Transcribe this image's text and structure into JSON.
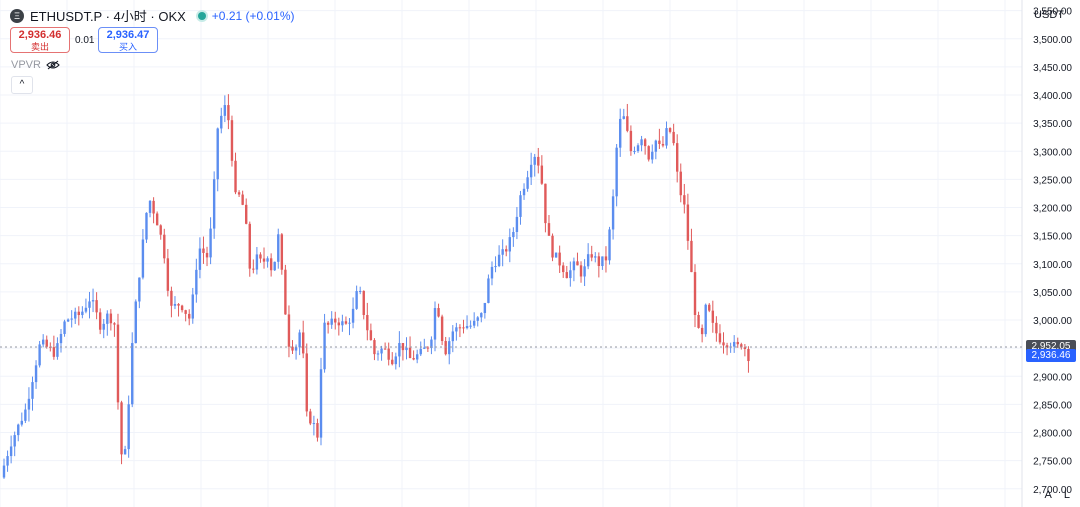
{
  "header": {
    "title": "ETHUSDT.P · 4小时 · OKX",
    "coin_glyph": "Ξ",
    "status_color": "#26a69a",
    "change": "+0.21 (+0.01%)"
  },
  "trade": {
    "sell_price": "2,936.46",
    "sell_label": "卖出",
    "spread": "0.01",
    "buy_price": "2,936.47",
    "buy_label": "买入"
  },
  "indicator": {
    "name": "VPVR",
    "icon": "eye-hidden-icon"
  },
  "collapse_label": "^",
  "currency": "USDT",
  "scale_buttons": {
    "auto": "A",
    "log": "L"
  },
  "colors": {
    "up": "#5b8def",
    "down": "#e05a5a",
    "grid": "#f0f3fa",
    "axis_text": "#131722",
    "tag_dark": "#4a4e57",
    "tag_blue": "#2962ff"
  },
  "chart_data": {
    "type": "candlestick",
    "ylim": [
      2680,
      3560
    ],
    "yticks": [
      "3,550.00",
      "3,500.00",
      "3,450.00",
      "3,400.00",
      "3,350.00",
      "3,300.00",
      "3,250.00",
      "3,200.00",
      "3,150.00",
      "3,100.00",
      "3,050.00",
      "3,000.00",
      "2,950.00",
      "2,900.00",
      "2,850.00",
      "2,800.00",
      "2,750.00",
      "2,700.00"
    ],
    "ytick_values": [
      3550,
      3500,
      3450,
      3400,
      3350,
      3300,
      3250,
      3200,
      3150,
      3100,
      3050,
      3000,
      2950,
      2900,
      2850,
      2800,
      2750,
      2700
    ],
    "price_tags": [
      {
        "label": "2,952.05",
        "value": 2952.05,
        "style": "dark"
      },
      {
        "label": "2,936.46",
        "value": 2936.46,
        "style": "blue"
      }
    ],
    "path": [
      [
        0,
        2720
      ],
      [
        10,
        2780
      ],
      [
        25,
        2840
      ],
      [
        40,
        2960
      ],
      [
        55,
        2940
      ],
      [
        65,
        3000
      ],
      [
        80,
        3010
      ],
      [
        90,
        3040
      ],
      [
        100,
        2990
      ],
      [
        108,
        3010
      ],
      [
        115,
        2990
      ],
      [
        118,
        2830
      ],
      [
        123,
        2720
      ],
      [
        128,
        2850
      ],
      [
        133,
        2990
      ],
      [
        140,
        3100
      ],
      [
        148,
        3220
      ],
      [
        156,
        3180
      ],
      [
        163,
        3130
      ],
      [
        170,
        3020
      ],
      [
        180,
        3030
      ],
      [
        190,
        3000
      ],
      [
        198,
        3130
      ],
      [
        208,
        3110
      ],
      [
        213,
        3220
      ],
      [
        217,
        3340
      ],
      [
        224,
        3380
      ],
      [
        229,
        3350
      ],
      [
        232,
        3280
      ],
      [
        236,
        3200
      ],
      [
        240,
        3230
      ],
      [
        246,
        3160
      ],
      [
        250,
        3080
      ],
      [
        256,
        3110
      ],
      [
        262,
        3100
      ],
      [
        268,
        3120
      ],
      [
        272,
        3080
      ],
      [
        278,
        3150
      ],
      [
        283,
        3050
      ],
      [
        288,
        2960
      ],
      [
        295,
        2950
      ],
      [
        301,
        2990
      ],
      [
        306,
        2830
      ],
      [
        312,
        2820
      ],
      [
        318,
        2790
      ],
      [
        322,
        2990
      ],
      [
        328,
        2990
      ],
      [
        336,
        3000
      ],
      [
        345,
        2990
      ],
      [
        352,
        3010
      ],
      [
        358,
        3060
      ],
      [
        366,
        2990
      ],
      [
        374,
        2940
      ],
      [
        383,
        2950
      ],
      [
        392,
        2930
      ],
      [
        400,
        2960
      ],
      [
        410,
        2930
      ],
      [
        420,
        2940
      ],
      [
        430,
        2960
      ],
      [
        436,
        3040
      ],
      [
        444,
        2940
      ],
      [
        452,
        2980
      ],
      [
        462,
        2990
      ],
      [
        472,
        2990
      ],
      [
        482,
        3010
      ],
      [
        490,
        3090
      ],
      [
        497,
        3110
      ],
      [
        504,
        3120
      ],
      [
        512,
        3150
      ],
      [
        520,
        3220
      ],
      [
        527,
        3260
      ],
      [
        533,
        3300
      ],
      [
        540,
        3270
      ],
      [
        546,
        3160
      ],
      [
        552,
        3120
      ],
      [
        560,
        3100
      ],
      [
        567,
        3080
      ],
      [
        575,
        3100
      ],
      [
        582,
        3080
      ],
      [
        590,
        3120
      ],
      [
        598,
        3100
      ],
      [
        606,
        3110
      ],
      [
        612,
        3200
      ],
      [
        618,
        3350
      ],
      [
        624,
        3360
      ],
      [
        630,
        3300
      ],
      [
        636,
        3310
      ],
      [
        642,
        3330
      ],
      [
        648,
        3290
      ],
      [
        655,
        3320
      ],
      [
        661,
        3300
      ],
      [
        667,
        3340
      ],
      [
        672,
        3330
      ],
      [
        678,
        3240
      ],
      [
        684,
        3200
      ],
      [
        690,
        3100
      ],
      [
        696,
        2990
      ],
      [
        701,
        2960
      ],
      [
        706,
        3030
      ],
      [
        712,
        2990
      ],
      [
        718,
        2970
      ],
      [
        724,
        2960
      ],
      [
        730,
        2960
      ],
      [
        736,
        2950
      ],
      [
        742,
        2960
      ],
      [
        748,
        2936
      ]
    ],
    "candle_count": 210
  }
}
